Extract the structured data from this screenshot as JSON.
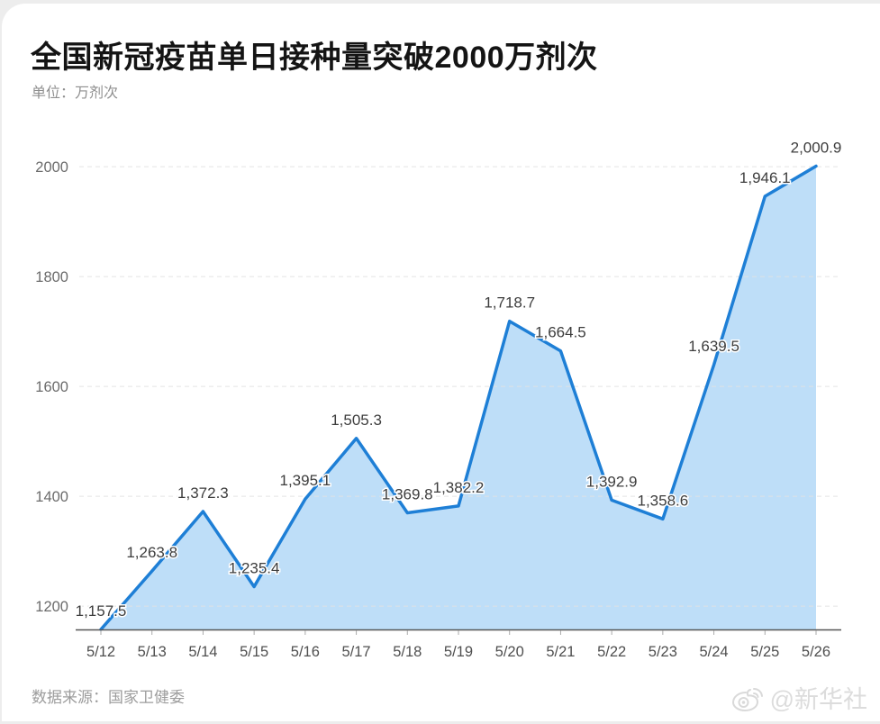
{
  "header": {
    "title": "全国新冠疫苗单日接种量突破2000万剂次",
    "subtitle": "单位：万剂次"
  },
  "chart_data": {
    "type": "area",
    "title": "全国新冠疫苗单日接种量突破2000万剂次",
    "unit_label": "单位：万剂次",
    "xlabel": "",
    "ylabel": "万剂次",
    "categories": [
      "5/12",
      "5/13",
      "5/14",
      "5/15",
      "5/16",
      "5/17",
      "5/18",
      "5/19",
      "5/20",
      "5/21",
      "5/22",
      "5/23",
      "5/24",
      "5/25",
      "5/26"
    ],
    "values": [
      1157.5,
      1263.8,
      1372.3,
      1235.4,
      1395.1,
      1505.3,
      1369.8,
      1382.2,
      1718.7,
      1664.5,
      1392.9,
      1358.6,
      1639.5,
      1946.1,
      2000.9
    ],
    "value_labels": [
      "1,157.5",
      "1,263.8",
      "1,372.3",
      "1,235.4",
      "1,395.1",
      "1,505.3",
      "1,369.8",
      "1,382.2",
      "1,718.7",
      "1,664.5",
      "1,392.9",
      "1,358.6",
      "1,639.5",
      "1,946.1",
      "2,000.9"
    ],
    "y_ticks": [
      1200,
      1400,
      1600,
      1800,
      2000
    ],
    "ylim": [
      1157.5,
      2000.9
    ],
    "grid": "horizontal dashed",
    "legend": "none",
    "colors": {
      "line": "#1e7fd6",
      "fill": "#bedef8",
      "grid": "#e1e1e1",
      "axis": "#555555",
      "axis_tick": "#aaaaaa",
      "tick_label": "#6b6b6b",
      "x_label": "#4f4f4f",
      "data_label": "#3d3d3d"
    }
  },
  "footer": {
    "source": "数据来源：国家卫健委",
    "watermark": "@新华社"
  }
}
